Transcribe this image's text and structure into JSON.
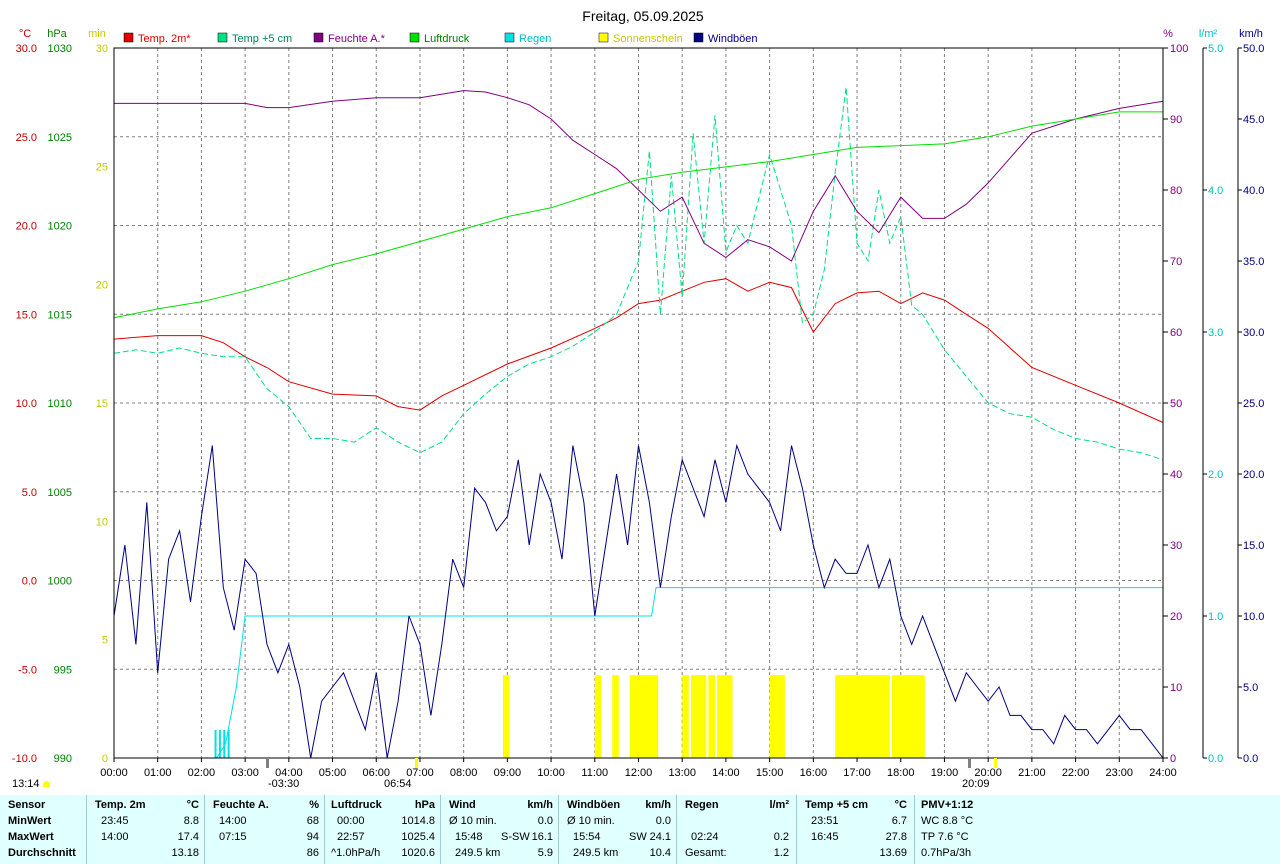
{
  "title": "Freitag, 05.09.2025",
  "time_marker": "13:14",
  "annotations": {
    "sunrise": "-03:30",
    "dawn": "06:54",
    "sunset": "20:09"
  },
  "axis_units": {
    "temp": "°C",
    "pressure": "hPa",
    "sunshine": "min",
    "humidity": "%",
    "rain": "l/m²",
    "wind": "km/h"
  },
  "colors": {
    "temp": "#e00000",
    "temp5": "#00e080",
    "humidity": "#800080",
    "pressure": "#00e000",
    "rain": "#00e0e0",
    "sun": "#ffff00",
    "gust": "#000080",
    "grid": "#808080",
    "temp_axis": "#c00000",
    "pressure_axis": "#008000",
    "sun_axis": "#c8c800",
    "humidity_axis": "#800080",
    "rain_axis": "#00c0c0",
    "stats_bg": "#e0ffff"
  },
  "legend": [
    {
      "label": "Temp. 2m*",
      "color": "#e00000"
    },
    {
      "label": "Temp +5 cm",
      "color": "#00e080"
    },
    {
      "label": "Feuchte A.*",
      "color": "#800080"
    },
    {
      "label": "Luftdruck",
      "color": "#00e000"
    },
    {
      "label": "Regen",
      "color": "#00e0e0"
    },
    {
      "label": "Sonnenschein",
      "color": "#ffff00"
    },
    {
      "label": "Windböen",
      "color": "#000080"
    }
  ],
  "chart_data": {
    "type": "line",
    "title": "Freitag, 05.09.2025",
    "x_ticks": [
      "00:00",
      "01:00",
      "02:00",
      "03:00",
      "04:00",
      "05:00",
      "06:00",
      "07:00",
      "08:00",
      "09:00",
      "10:00",
      "11:00",
      "12:00",
      "13:00",
      "14:00",
      "15:00",
      "16:00",
      "17:00",
      "18:00",
      "19:00",
      "20:00",
      "21:00",
      "22:00",
      "23:00",
      "24:00"
    ],
    "x_range_hours": [
      0,
      24
    ],
    "grid": true,
    "legend_position": "top",
    "axes": {
      "temp": {
        "unit": "°C",
        "range": [
          -10,
          30
        ],
        "ticks": [
          "30.0",
          "25.0",
          "20.0",
          "15.0",
          "10.0",
          "5.0",
          "0.0",
          "-5.0",
          "-10.0"
        ]
      },
      "pressure": {
        "unit": "hPa",
        "range": [
          990,
          1030
        ],
        "ticks": [
          "1030",
          "1025",
          "1020",
          "1015",
          "1010",
          "1005",
          "1000",
          "995",
          "990"
        ]
      },
      "sunshine": {
        "unit": "min",
        "range": [
          0,
          30
        ],
        "ticks": [
          "30",
          "25",
          "20",
          "15",
          "10",
          "5",
          "0"
        ]
      },
      "humidity": {
        "unit": "%",
        "range": [
          0,
          100
        ],
        "ticks": [
          "100",
          "90",
          "80",
          "70",
          "60",
          "50",
          "40",
          "30",
          "20",
          "10",
          "0"
        ]
      },
      "rain": {
        "unit": "l/m²",
        "range": [
          0,
          5
        ],
        "ticks": [
          "5.0",
          "4.0",
          "3.0",
          "2.0",
          "1.0",
          "0.0"
        ]
      },
      "wind": {
        "unit": "km/h",
        "range": [
          0,
          50
        ],
        "ticks": [
          "50.0",
          "45.0",
          "40.0",
          "35.0",
          "30.0",
          "25.0",
          "20.0",
          "15.0",
          "10.0",
          "5.0",
          "0.0"
        ]
      }
    },
    "series": [
      {
        "name": "Temp. 2m*",
        "axis": "temp",
        "style": "solid",
        "x": [
          0,
          1,
          2,
          2.5,
          3,
          3.5,
          4,
          5,
          6,
          6.5,
          7,
          7.5,
          8,
          9,
          10,
          11,
          11.5,
          12,
          12.5,
          13,
          13.5,
          14,
          14.5,
          15,
          15.5,
          16,
          16.5,
          17,
          17.5,
          18,
          18.5,
          19,
          19.5,
          20,
          21,
          22,
          23,
          24
        ],
        "y": [
          13.6,
          13.8,
          13.8,
          13.4,
          12.6,
          12,
          11.2,
          10.5,
          10.4,
          9.8,
          9.6,
          10.4,
          11,
          12.2,
          13.1,
          14.2,
          14.8,
          15.6,
          15.8,
          16.3,
          16.8,
          17.0,
          16.3,
          16.8,
          16.5,
          14.0,
          15.6,
          16.2,
          16.3,
          15.6,
          16.2,
          15.8,
          15.0,
          14.2,
          12.0,
          11.0,
          10.0,
          8.9
        ]
      },
      {
        "name": "Temp +5 cm",
        "axis": "temp",
        "style": "dashed",
        "x": [
          0,
          0.5,
          1,
          1.5,
          2,
          2.5,
          3,
          3.5,
          4,
          4.5,
          5,
          5.5,
          6,
          6.5,
          7,
          7.5,
          8,
          8.5,
          9,
          9.5,
          10,
          10.5,
          11,
          11.5,
          12,
          12.25,
          12.5,
          12.75,
          13,
          13.25,
          13.5,
          13.75,
          14,
          14.25,
          14.5,
          14.75,
          15,
          15.25,
          15.5,
          15.75,
          16,
          16.25,
          16.5,
          16.75,
          17,
          17.25,
          17.5,
          17.75,
          18,
          18.25,
          18.5,
          19,
          19.5,
          20,
          20.5,
          21,
          21.5,
          22,
          22.5,
          23,
          23.5,
          24
        ],
        "y": [
          12.8,
          13.0,
          12.8,
          13.1,
          12.8,
          12.6,
          12.6,
          10.8,
          9.8,
          8.0,
          8.0,
          7.8,
          8.6,
          7.8,
          7.2,
          7.8,
          9.4,
          10.5,
          11.5,
          12.2,
          12.6,
          13.2,
          14.0,
          15.0,
          18.0,
          24.2,
          15.0,
          22.8,
          16.0,
          25.2,
          19.0,
          26.2,
          18.5,
          20.0,
          19.0,
          21.5,
          24.0,
          22.0,
          20.0,
          14.5,
          15.0,
          17.5,
          23.0,
          27.8,
          19.0,
          18.0,
          22.0,
          19.0,
          20.5,
          15.5,
          15.0,
          13.0,
          11.5,
          10.0,
          9.4,
          9.2,
          8.5,
          8.0,
          7.8,
          7.4,
          7.2,
          6.8
        ]
      },
      {
        "name": "Feuchte A.*",
        "axis": "humidity",
        "style": "solid",
        "x": [
          0,
          1,
          2,
          3,
          3.5,
          4,
          5,
          6,
          7,
          8,
          8.5,
          9,
          9.5,
          10,
          10.5,
          11,
          11.5,
          12,
          12.5,
          13,
          13.5,
          14,
          14.5,
          15,
          15.5,
          16,
          16.5,
          17,
          17.5,
          18,
          18.5,
          19,
          19.5,
          20,
          21,
          22,
          23,
          24
        ],
        "y": [
          92.2,
          92.2,
          92.2,
          92.2,
          91.6,
          91.6,
          92.5,
          93,
          93,
          94,
          93.8,
          93,
          92,
          90,
          87,
          85,
          83,
          80,
          77,
          79,
          72.5,
          70.5,
          73,
          72,
          70,
          77,
          82,
          77,
          74,
          79,
          76,
          76,
          78,
          81,
          88,
          90,
          91.5,
          92.5
        ]
      },
      {
        "name": "Luftdruck",
        "axis": "pressure",
        "style": "solid",
        "x": [
          0,
          1,
          2,
          3,
          4,
          5,
          6,
          7,
          8,
          9,
          10,
          11,
          12,
          13,
          14,
          15,
          16,
          17,
          18,
          19,
          20,
          21,
          22,
          23,
          24
        ],
        "y": [
          1014.8,
          1015.3,
          1015.7,
          1016.3,
          1017,
          1017.8,
          1018.4,
          1019.1,
          1019.8,
          1020.5,
          1021,
          1021.8,
          1022.6,
          1023,
          1023.3,
          1023.6,
          1024,
          1024.4,
          1024.5,
          1024.6,
          1025,
          1025.6,
          1026,
          1026.4,
          1026.4
        ]
      },
      {
        "name": "Regen",
        "axis": "rain",
        "style": "solid",
        "x": [
          0,
          2.35,
          2.55,
          2.8,
          3.0,
          12.3,
          12.4,
          24
        ],
        "y": [
          0,
          0,
          0.1,
          0.5,
          1.0,
          1.0,
          1.2,
          1.2
        ]
      },
      {
        "name": "Windböen",
        "axis": "wind",
        "style": "solid",
        "x": [
          0,
          0.25,
          0.5,
          0.75,
          1.0,
          1.25,
          1.5,
          1.75,
          2.0,
          2.25,
          2.5,
          2.75,
          3.0,
          3.25,
          3.5,
          3.75,
          4.0,
          4.25,
          4.5,
          4.75,
          5.0,
          5.25,
          5.5,
          5.75,
          6.0,
          6.25,
          6.5,
          6.75,
          7.0,
          7.25,
          7.5,
          7.75,
          8.0,
          8.25,
          8.5,
          8.75,
          9.0,
          9.25,
          9.5,
          9.75,
          10.0,
          10.25,
          10.5,
          10.75,
          11.0,
          11.25,
          11.5,
          11.75,
          12.0,
          12.25,
          12.5,
          12.75,
          13.0,
          13.25,
          13.5,
          13.75,
          14.0,
          14.25,
          14.5,
          14.75,
          15.0,
          15.25,
          15.5,
          15.75,
          16.0,
          16.25,
          16.5,
          16.75,
          17.0,
          17.25,
          17.5,
          17.75,
          18.0,
          18.25,
          18.5,
          18.75,
          19.0,
          19.25,
          19.5,
          19.75,
          20.0,
          20.25,
          20.5,
          20.75,
          21.0,
          21.25,
          21.5,
          21.75,
          22.0,
          22.25,
          22.5,
          22.75,
          23.0,
          23.25,
          23.5,
          23.75,
          24.0
        ],
        "y": [
          10,
          15,
          8,
          18,
          6,
          14,
          16,
          11,
          17,
          22,
          12,
          9,
          14,
          13,
          8,
          6,
          8,
          5,
          0,
          4,
          5,
          6,
          4,
          2,
          6,
          0,
          4,
          10,
          8,
          3,
          8,
          14,
          12,
          19,
          18,
          16,
          17,
          21,
          15,
          20,
          18,
          14,
          22,
          18,
          10,
          15,
          20,
          15,
          22,
          18,
          12,
          17,
          21,
          19,
          17,
          21,
          18,
          22,
          20,
          19,
          18,
          16,
          22,
          19,
          15,
          12,
          14,
          13,
          13,
          15,
          12,
          14,
          10,
          8,
          10,
          8,
          6,
          4,
          6,
          5,
          4,
          5,
          3,
          3,
          2,
          2,
          1,
          3,
          2,
          2,
          1,
          2,
          3,
          2,
          2,
          1,
          0
        ]
      }
    ],
    "sunshine_bars": {
      "unit": "min",
      "interval_min": 10,
      "value": 3.5,
      "x_hours": [
        8.9,
        11.0,
        11.4,
        11.8,
        11.9,
        12.0,
        12.1,
        12.2,
        12.3,
        13.0,
        13.2,
        13.3,
        13.4,
        13.6,
        13.8,
        13.9,
        14.0,
        15.0,
        15.1,
        15.2,
        16.5,
        16.6,
        16.7,
        16.8,
        16.9,
        17.0,
        17.1,
        17.2,
        17.3,
        17.4,
        17.5,
        17.6,
        17.8,
        17.9,
        18.0,
        18.1,
        18.2,
        18.3,
        18.4
      ]
    }
  },
  "stats": {
    "row_labels": {
      "sensor": "Sensor",
      "min": "MinWert",
      "max": "MaxWert",
      "avg": "Durchschnitt"
    },
    "temp2m": {
      "name": "Temp. 2m",
      "unit": "°C",
      "min_time": "23:45",
      "min_val": "8.8",
      "max_time": "14:00",
      "max_val": "17.4",
      "avg_val": "13.18"
    },
    "humidity": {
      "name": "Feuchte A.",
      "unit": "%",
      "min_time": "14:00",
      "min_val": "68",
      "max_time": "07:15",
      "max_val": "94",
      "avg_val": "86"
    },
    "pressure": {
      "name": "Luftdruck",
      "unit": "hPa",
      "min_time": "00:00",
      "min_val": "1014.8",
      "max_time": "22:57",
      "max_val": "1025.4",
      "avg_note": "^1.0hPa/h",
      "avg_val": "1020.6"
    },
    "wind": {
      "name": "Wind",
      "unit": "km/h",
      "min_label": "Ø 10 min.",
      "min_val": "0.0",
      "max_time": "15:48",
      "max_dir": "S-SW",
      "max_val": "16.1",
      "avg_dist": "249.5 km",
      "avg_val": "5.9"
    },
    "gust": {
      "name": "Windböen",
      "unit": "km/h",
      "min_label": "Ø 10 min.",
      "min_val": "0.0",
      "max_time": "15:54",
      "max_dir": "SW",
      "max_val": "24.1",
      "avg_dist": "249.5 km",
      "avg_val": "10.4"
    },
    "rain": {
      "name": "Regen",
      "unit": "l/m²",
      "max_time": "02:24",
      "max_val": "0.2",
      "total_label": "Gesamt:",
      "total_val": "1.2"
    },
    "temp5": {
      "name": "Temp +5 cm",
      "unit": "°C",
      "min_time": "23:51",
      "min_val": "6.7",
      "max_time": "16:45",
      "max_val": "27.8",
      "avg_val": "13.69"
    },
    "pmv": {
      "name": "PMV+1:12",
      "l1": "WC 8.8 °C",
      "l2": "TP 7.6 °C",
      "l3": "0.7hPa/3h"
    }
  }
}
